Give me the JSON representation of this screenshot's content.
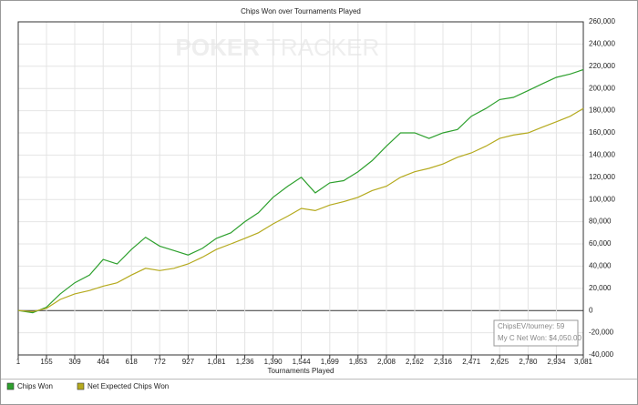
{
  "chart_data": {
    "type": "line",
    "title": "Chips Won over Tournaments Played",
    "watermark": [
      "POKER",
      "TRACKER"
    ],
    "x_label": "Tournaments Played",
    "x": [
      1,
      80,
      155,
      230,
      309,
      390,
      464,
      540,
      618,
      695,
      772,
      850,
      927,
      1005,
      1081,
      1160,
      1236,
      1310,
      1390,
      1470,
      1544,
      1620,
      1699,
      1775,
      1853,
      1930,
      2008,
      2085,
      2162,
      2240,
      2316,
      2395,
      2471,
      2550,
      2625,
      2700,
      2780,
      2855,
      2934,
      3010,
      3081
    ],
    "series": [
      {
        "name": "Chips Won",
        "color": "#2ea02e",
        "values": [
          0,
          -2000,
          3000,
          15000,
          25000,
          32000,
          46000,
          42000,
          55000,
          66000,
          58000,
          54000,
          50000,
          56000,
          65000,
          70000,
          80000,
          88000,
          102000,
          112000,
          120000,
          106000,
          115000,
          117000,
          125000,
          135000,
          148000,
          160000,
          160000,
          155000,
          160000,
          163000,
          175000,
          182000,
          190000,
          192000,
          198000,
          204000,
          210000,
          213000,
          217000
        ]
      },
      {
        "name": "Net Expected Chips Won",
        "color": "#b5aa1e",
        "values": [
          0,
          -1000,
          2000,
          10000,
          15000,
          18000,
          22000,
          25000,
          32000,
          38000,
          36000,
          38000,
          42000,
          48000,
          55000,
          60000,
          65000,
          70000,
          78000,
          85000,
          92000,
          90000,
          95000,
          98000,
          102000,
          108000,
          112000,
          120000,
          125000,
          128000,
          132000,
          138000,
          142000,
          148000,
          155000,
          158000,
          160000,
          165000,
          170000,
          175000,
          182000
        ]
      }
    ],
    "xlim": [
      1,
      3081
    ],
    "xticks": [
      1,
      155,
      309,
      464,
      618,
      772,
      927,
      {
        "value": 1081,
        "label": "1,081"
      },
      {
        "value": 1236,
        "label": "1,236"
      },
      {
        "value": 1390,
        "label": "1,390"
      },
      {
        "value": 1544,
        "label": "1,544"
      },
      {
        "value": 1699,
        "label": "1,699"
      },
      {
        "value": 1853,
        "label": "1,853"
      },
      {
        "value": 2008,
        "label": "2,008"
      },
      {
        "value": 2162,
        "label": "2,162"
      },
      {
        "value": 2316,
        "label": "2,316"
      },
      {
        "value": 2471,
        "label": "2,471"
      },
      {
        "value": 2625,
        "label": "2,625"
      },
      {
        "value": 2780,
        "label": "2,780"
      },
      {
        "value": 2934,
        "label": "2,934"
      },
      {
        "value": 3081,
        "label": "3,081"
      }
    ],
    "ylim": [
      -40000,
      260000
    ],
    "yticks": [
      {
        "value": -40000,
        "label": "-40,000"
      },
      {
        "value": -20000,
        "label": "-20,000"
      },
      0,
      {
        "value": 20000,
        "label": "20,000"
      },
      {
        "value": 40000,
        "label": "40,000"
      },
      {
        "value": 60000,
        "label": "60,000"
      },
      {
        "value": 80000,
        "label": "80,000"
      },
      {
        "value": 100000,
        "label": "100,000"
      },
      {
        "value": 120000,
        "label": "120,000"
      },
      {
        "value": 140000,
        "label": "140,000"
      },
      {
        "value": 160000,
        "label": "160,000"
      },
      {
        "value": 180000,
        "label": "180,000"
      },
      {
        "value": 200000,
        "label": "200,000"
      },
      {
        "value": 220000,
        "label": "220,000"
      },
      {
        "value": 240000,
        "label": "240,000"
      },
      {
        "value": 260000,
        "label": "260,000"
      }
    ],
    "grid": true,
    "annotations": [
      "ChipsEV/tourney: 59",
      "My C Net Won: $4,050.00"
    ]
  }
}
